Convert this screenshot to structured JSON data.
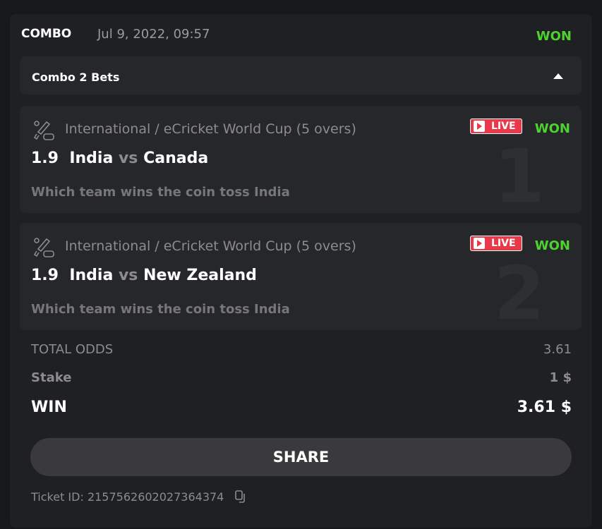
{
  "header": {
    "type": "COMBO",
    "date": "Jul 9, 2022, 09:57",
    "status": "WON"
  },
  "combo": {
    "label": "Combo 2 Bets"
  },
  "bets": [
    {
      "index": "1",
      "league": "International / eCricket World Cup (5 overs)",
      "live": "LIVE",
      "status": "WON",
      "odds": "1.9",
      "team1": "India",
      "vs": "vs",
      "team2": "Canada",
      "market": "Which team wins the coin toss India"
    },
    {
      "index": "2",
      "league": "International / eCricket World Cup (5 overs)",
      "live": "LIVE",
      "status": "WON",
      "odds": "1.9",
      "team1": "India",
      "vs": "vs",
      "team2": "New Zealand",
      "market": "Which team wins the coin toss India"
    }
  ],
  "summary": {
    "total_odds_label": "TOTAL ODDS",
    "total_odds": "3.61",
    "stake_label": "Stake",
    "stake": "1 $",
    "win_label": "WIN",
    "win": "3.61 $"
  },
  "share_label": "SHARE",
  "ticket": "Ticket ID: 2157562602027364374",
  "colors": {
    "won": "#4dd22e",
    "live": "#e8384a"
  }
}
